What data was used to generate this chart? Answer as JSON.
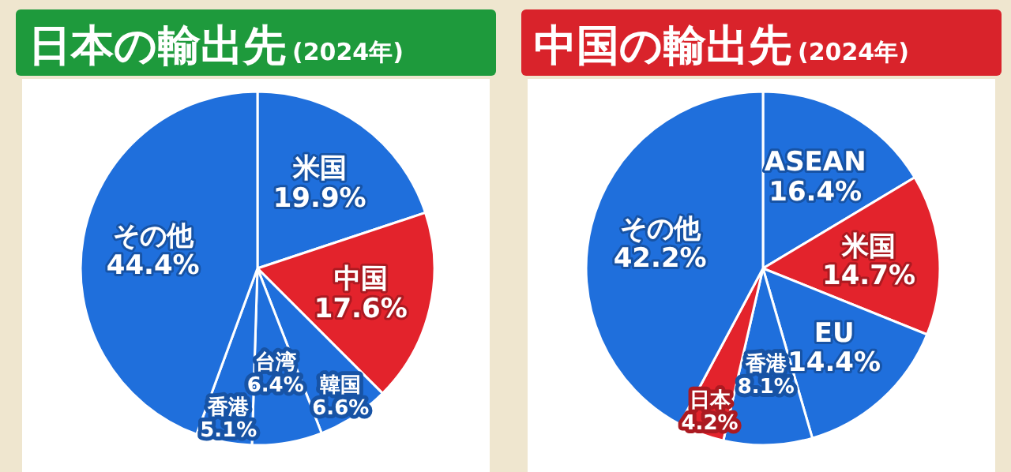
{
  "chart_data": [
    {
      "type": "pie",
      "title": "日本の輸出先",
      "subtitle": "(2024年)",
      "categories": [
        "米国",
        "中国",
        "韓国",
        "台湾",
        "香港",
        "その他"
      ],
      "values": [
        19.9,
        17.6,
        6.6,
        6.4,
        5.1,
        44.4
      ],
      "colors": [
        "#1f6fdc",
        "#e3232c",
        "#1f6fdc",
        "#1f6fdc",
        "#1f6fdc",
        "#1f6fdc"
      ],
      "value_labels": [
        "19.9%",
        "17.6%",
        "6.6%",
        "6.4%",
        "5.1%",
        "44.4%"
      ]
    },
    {
      "type": "pie",
      "title": "中国の輸出先",
      "subtitle": "(2024年)",
      "categories": [
        "ASEAN",
        "米国",
        "EU",
        "香港",
        "日本",
        "その他"
      ],
      "values": [
        16.4,
        14.7,
        14.4,
        8.1,
        4.2,
        42.2
      ],
      "colors": [
        "#1f6fdc",
        "#e3232c",
        "#1f6fdc",
        "#1f6fdc",
        "#e3232c",
        "#1f6fdc"
      ],
      "value_labels": [
        "16.4%",
        "14.7%",
        "14.4%",
        "8.1%",
        "4.2%",
        "42.2%"
      ]
    }
  ]
}
